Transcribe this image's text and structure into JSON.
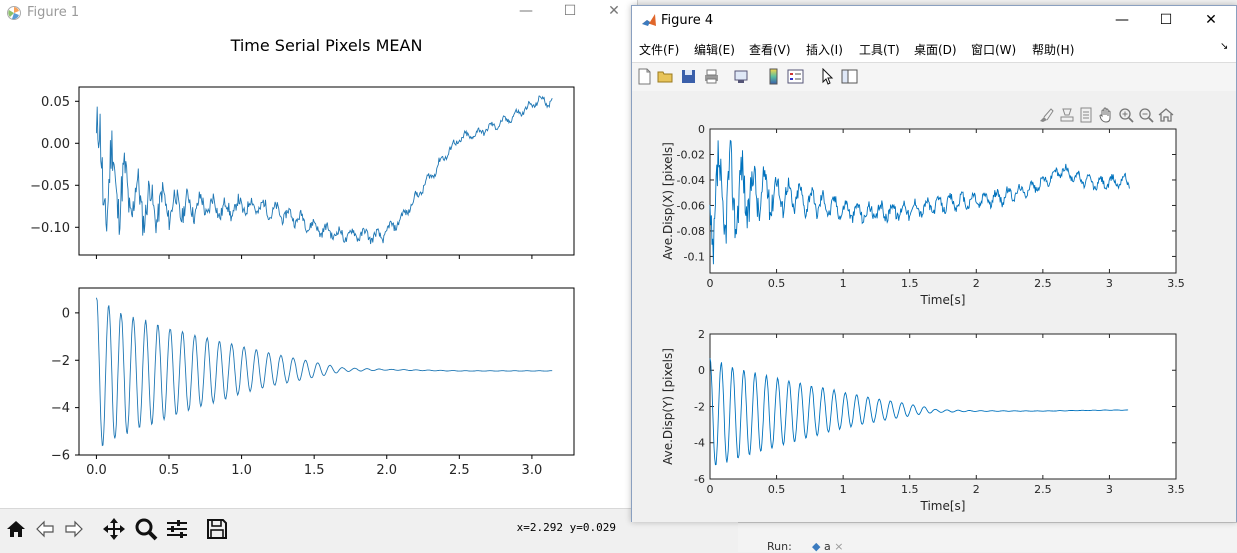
{
  "background": {
    "run_label": "Run:",
    "run_tab": "a",
    "run_tab_close": "×",
    "colors": {
      "strip": "#f3f3f3"
    }
  },
  "figure1": {
    "window_title": "Figure 1",
    "controls": {
      "minimize": "—",
      "maximize": "☐",
      "close": "✕"
    },
    "coord_readout": "x=2.292 y=0.029",
    "toolbar_icons": [
      "home-icon",
      "back-arrow-icon",
      "forward-arrow-icon",
      "pan-icon",
      "zoom-icon",
      "configure-subplots-icon",
      "save-icon"
    ],
    "line_color": "#1f77b4"
  },
  "figure4": {
    "window_title": "Figure 4",
    "controls": {
      "minimize": "—",
      "maximize": "☐",
      "close": "✕"
    },
    "menus": [
      "文件(F)",
      "编辑(E)",
      "查看(V)",
      "插入(I)",
      "工具(T)",
      "桌面(D)",
      "窗口(W)",
      "帮助(H)"
    ],
    "menu_overflow": "↘",
    "toolbar_icons": [
      "new-figure-icon",
      "open-icon",
      "save-icon",
      "print-icon",
      "link-icon",
      "colorbar-icon",
      "legend-icon",
      "edit-plot-icon",
      "property-inspector-icon"
    ],
    "axes_toolbar_icons": [
      "brush-icon",
      "data-tips-icon",
      "export-icon",
      "pan-icon",
      "zoom-in-icon",
      "zoom-out-icon",
      "home-icon"
    ],
    "line_color": "#0072bd"
  },
  "chart_data": [
    {
      "id": "fig1-top",
      "type": "line",
      "title": "Time Serial Pixels MEAN",
      "xlabel": "",
      "ylabel": "",
      "xlim": [
        -0.12,
        3.29
      ],
      "ylim": [
        -0.133,
        0.067
      ],
      "xticks": [],
      "xtick_labels": [],
      "yticks": [
        0.05,
        0.0,
        -0.05,
        -0.1
      ],
      "ytick_labels": [
        "0.05",
        "0.00",
        "−0.05",
        "−0.10"
      ],
      "grid": false,
      "x": [
        0,
        0.05,
        0.1,
        0.15,
        0.2,
        0.3,
        0.4,
        0.5,
        0.6,
        0.7,
        0.8,
        0.9,
        1.0,
        1.1,
        1.2,
        1.3,
        1.4,
        1.5,
        1.6,
        1.7,
        1.8,
        1.9,
        1.95,
        2.0,
        2.1,
        2.2,
        2.3,
        2.4,
        2.5,
        2.6,
        2.7,
        2.8,
        2.9,
        3.0,
        3.05,
        3.1,
        3.14
      ],
      "y": [
        0.0,
        -0.06,
        -0.04,
        -0.05,
        -0.06,
        -0.07,
        -0.075,
        -0.075,
        -0.075,
        -0.075,
        -0.075,
        -0.08,
        -0.075,
        -0.075,
        -0.08,
        -0.085,
        -0.09,
        -0.1,
        -0.105,
        -0.11,
        -0.108,
        -0.11,
        -0.112,
        -0.105,
        -0.09,
        -0.065,
        -0.04,
        -0.015,
        0.005,
        0.01,
        0.018,
        0.025,
        0.035,
        0.045,
        0.052,
        0.05,
        0.048
      ],
      "amp": [
        0.05,
        0.045,
        0.04,
        0.035,
        0.03,
        0.025,
        0.02,
        0.017,
        0.014,
        0.012,
        0.011,
        0.01,
        0.009,
        0.008,
        0.008,
        0.007,
        0.007,
        0.007,
        0.006,
        0.006,
        0.006,
        0.006,
        0.006,
        0.006,
        0.005,
        0.005,
        0.005,
        0.005,
        0.005,
        0.004,
        0.004,
        0.004,
        0.004,
        0.004,
        0.004,
        0.004,
        0.004
      ]
    },
    {
      "id": "fig1-bottom",
      "type": "line",
      "xlabel": "",
      "ylabel": "",
      "xlim": [
        -0.12,
        3.29
      ],
      "ylim": [
        -6.0,
        1.05
      ],
      "xticks": [
        0,
        0.5,
        1.0,
        1.5,
        2.0,
        2.5,
        3.0
      ],
      "xtick_labels": [
        "0.0",
        "0.5",
        "1.0",
        "1.5",
        "2.0",
        "2.5",
        "3.0"
      ],
      "yticks": [
        0,
        -2,
        -4,
        -6
      ],
      "ytick_labels": [
        "0",
        "−2",
        "−4",
        "−6"
      ],
      "grid": false,
      "x": [
        0,
        0.05,
        0.2,
        0.4,
        0.6,
        0.8,
        1.0,
        1.2,
        1.4,
        1.6,
        1.7,
        2.0,
        2.5,
        3.0,
        3.14
      ],
      "y": [
        -2.5,
        -2.6,
        -2.6,
        -2.55,
        -2.5,
        -2.45,
        -2.4,
        -2.4,
        -2.4,
        -2.4,
        -2.4,
        -2.4,
        -2.45,
        -2.45,
        -2.45
      ],
      "amp": [
        3.2,
        3.0,
        2.5,
        2.1,
        1.7,
        1.35,
        1.0,
        0.7,
        0.45,
        0.2,
        0.08,
        0.02,
        0.01,
        0.01,
        0.01
      ]
    },
    {
      "id": "fig4-top",
      "type": "line",
      "xlabel": "Time[s]",
      "ylabel": "Ave.Disp(X) [pixels]",
      "xlim": [
        0,
        3.5
      ],
      "ylim": [
        -0.113,
        0
      ],
      "xticks": [
        0,
        0.5,
        1,
        1.5,
        2,
        2.5,
        3,
        3.5
      ],
      "xtick_labels": [
        "0",
        "0.5",
        "1",
        "1.5",
        "2",
        "2.5",
        "3",
        "3.5"
      ],
      "yticks": [
        0,
        -0.02,
        -0.04,
        -0.06,
        -0.08,
        -0.1
      ],
      "ytick_labels": [
        "0",
        "-0.02",
        "-0.04",
        "-0.06",
        "-0.08",
        "-0.1"
      ],
      "grid": false,
      "x": [
        0,
        0.05,
        0.1,
        0.2,
        0.3,
        0.4,
        0.5,
        0.6,
        0.7,
        0.8,
        0.9,
        1.0,
        1.1,
        1.2,
        1.3,
        1.4,
        1.5,
        1.6,
        1.7,
        1.8,
        1.9,
        2.0,
        2.1,
        2.2,
        2.3,
        2.4,
        2.5,
        2.6,
        2.65,
        2.7,
        2.8,
        2.9,
        3.0,
        3.1,
        3.15
      ],
      "y": [
        -0.07,
        -0.06,
        -0.055,
        -0.05,
        -0.05,
        -0.05,
        -0.05,
        -0.053,
        -0.055,
        -0.058,
        -0.06,
        -0.063,
        -0.065,
        -0.066,
        -0.065,
        -0.064,
        -0.063,
        -0.062,
        -0.06,
        -0.058,
        -0.057,
        -0.056,
        -0.055,
        -0.053,
        -0.05,
        -0.047,
        -0.042,
        -0.035,
        -0.032,
        -0.035,
        -0.04,
        -0.043,
        -0.042,
        -0.04,
        -0.04
      ],
      "amp": [
        0.04,
        0.035,
        0.03,
        0.025,
        0.02,
        0.016,
        0.013,
        0.01,
        0.009,
        0.008,
        0.007,
        0.006,
        0.006,
        0.006,
        0.006,
        0.006,
        0.006,
        0.005,
        0.005,
        0.005,
        0.005,
        0.005,
        0.005,
        0.005,
        0.004,
        0.004,
        0.004,
        0.004,
        0.004,
        0.004,
        0.004,
        0.004,
        0.004,
        0.004,
        0.004
      ]
    },
    {
      "id": "fig4-bottom",
      "type": "line",
      "xlabel": "Time[s]",
      "ylabel": "Ave.Disp(Y) [pixels]",
      "xlim": [
        0,
        3.5
      ],
      "ylim": [
        -6,
        2
      ],
      "xticks": [
        0,
        0.5,
        1,
        1.5,
        2,
        2.5,
        3,
        3.5
      ],
      "xtick_labels": [
        "0",
        "0.5",
        "1",
        "1.5",
        "2",
        "2.5",
        "3",
        "3.5"
      ],
      "yticks": [
        2,
        0,
        -2,
        -4,
        -6
      ],
      "ytick_labels": [
        "2",
        "0",
        "-2",
        "-4",
        "-6"
      ],
      "grid": false,
      "x": [
        0,
        0.05,
        0.2,
        0.4,
        0.6,
        0.8,
        1.0,
        1.2,
        1.4,
        1.6,
        1.7,
        2.0,
        2.5,
        3.0,
        3.14
      ],
      "y": [
        -2.3,
        -2.4,
        -2.4,
        -2.35,
        -2.3,
        -2.25,
        -2.2,
        -2.2,
        -2.2,
        -2.2,
        -2.25,
        -2.25,
        -2.25,
        -2.2,
        -2.2
      ],
      "amp": [
        3.0,
        2.9,
        2.5,
        2.1,
        1.7,
        1.35,
        1.0,
        0.7,
        0.45,
        0.2,
        0.08,
        0.02,
        0.01,
        0.01,
        0.01
      ]
    }
  ]
}
